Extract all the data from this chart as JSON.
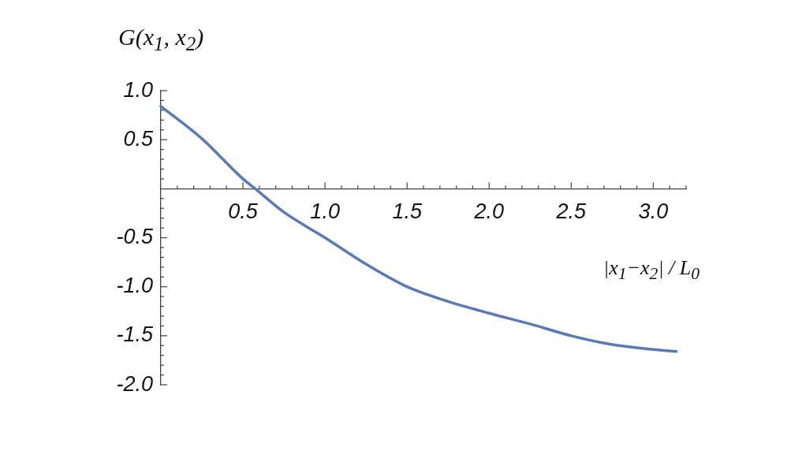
{
  "chart_data": {
    "type": "line",
    "ylabel": "G(x$_{1}$, x$_{2}$)",
    "xlabel": "|x$_{1}$−x$_{2}$| / L$_{0}$",
    "x": [
      0,
      0.25,
      0.5,
      0.575,
      0.75,
      1.0,
      1.25,
      1.5,
      1.75,
      2.0,
      2.25,
      2.5,
      2.75,
      3.0,
      3.14
    ],
    "series": [
      {
        "color": "#5a7ab5",
        "values": [
          0.84,
          0.51,
          0.1,
          0,
          -0.24,
          -0.5,
          -0.77,
          -1.0,
          -1.15,
          -1.27,
          -1.38,
          -1.5,
          -1.59,
          -1.64,
          -1.66
        ]
      }
    ],
    "xlim": [
      0,
      3.2
    ],
    "ylim": [
      -2,
      1
    ],
    "xticks": [
      {
        "value": 0.1,
        "label": null
      },
      {
        "value": 0.2,
        "label": null
      },
      {
        "value": 0.3,
        "label": null
      },
      {
        "value": 0.4,
        "label": null
      },
      {
        "value": 0.5,
        "label": "0.5"
      },
      {
        "value": 0.6,
        "label": null
      },
      {
        "value": 0.7,
        "label": null
      },
      {
        "value": 0.8,
        "label": null
      },
      {
        "value": 0.9,
        "label": null
      },
      {
        "value": 1,
        "label": "1.0"
      },
      {
        "value": 1.1,
        "label": null
      },
      {
        "value": 1.2,
        "label": null
      },
      {
        "value": 1.3,
        "label": null
      },
      {
        "value": 1.4,
        "label": null
      },
      {
        "value": 1.5,
        "label": "1.5"
      },
      {
        "value": 1.6,
        "label": null
      },
      {
        "value": 1.7,
        "label": null
      },
      {
        "value": 1.8,
        "label": null
      },
      {
        "value": 1.9,
        "label": null
      },
      {
        "value": 2,
        "label": "2.0"
      },
      {
        "value": 2.1,
        "label": null
      },
      {
        "value": 2.2,
        "label": null
      },
      {
        "value": 2.3,
        "label": null
      },
      {
        "value": 2.4,
        "label": null
      },
      {
        "value": 2.5,
        "label": "2.5"
      },
      {
        "value": 2.6,
        "label": null
      },
      {
        "value": 2.7,
        "label": null
      },
      {
        "value": 2.8,
        "label": null
      },
      {
        "value": 2.9,
        "label": null
      },
      {
        "value": 3,
        "label": "3.0"
      },
      {
        "value": 3.1,
        "label": null
      },
      {
        "value": 3.2,
        "label": null
      }
    ],
    "yticks": [
      {
        "value": -2,
        "label": "-2.0"
      },
      {
        "value": -1.9,
        "label": null
      },
      {
        "value": -1.8,
        "label": null
      },
      {
        "value": -1.7,
        "label": null
      },
      {
        "value": -1.6,
        "label": null
      },
      {
        "value": -1.5,
        "label": "-1.5"
      },
      {
        "value": -1.4,
        "label": null
      },
      {
        "value": -1.3,
        "label": null
      },
      {
        "value": -1.2,
        "label": null
      },
      {
        "value": -1.1,
        "label": null
      },
      {
        "value": -1,
        "label": "-1.0"
      },
      {
        "value": -0.9,
        "label": null
      },
      {
        "value": -0.8,
        "label": null
      },
      {
        "value": -0.7,
        "label": null
      },
      {
        "value": -0.6,
        "label": null
      },
      {
        "value": -0.5,
        "label": "-0.5"
      },
      {
        "value": -0.4,
        "label": null
      },
      {
        "value": -0.3,
        "label": null
      },
      {
        "value": -0.2,
        "label": null
      },
      {
        "value": -0.1,
        "label": null
      },
      {
        "value": 0.1,
        "label": null
      },
      {
        "value": 0.2,
        "label": null
      },
      {
        "value": 0.3,
        "label": null
      },
      {
        "value": 0.4,
        "label": null
      },
      {
        "value": 0.5,
        "label": "0.5"
      },
      {
        "value": 0.6,
        "label": null
      },
      {
        "value": 0.7,
        "label": null
      },
      {
        "value": 0.8,
        "label": null
      },
      {
        "value": 0.9,
        "label": null
      },
      {
        "value": 1,
        "label": "1.0"
      }
    ],
    "grid": false,
    "legend": false,
    "marker": "none",
    "line_style": "solid"
  }
}
